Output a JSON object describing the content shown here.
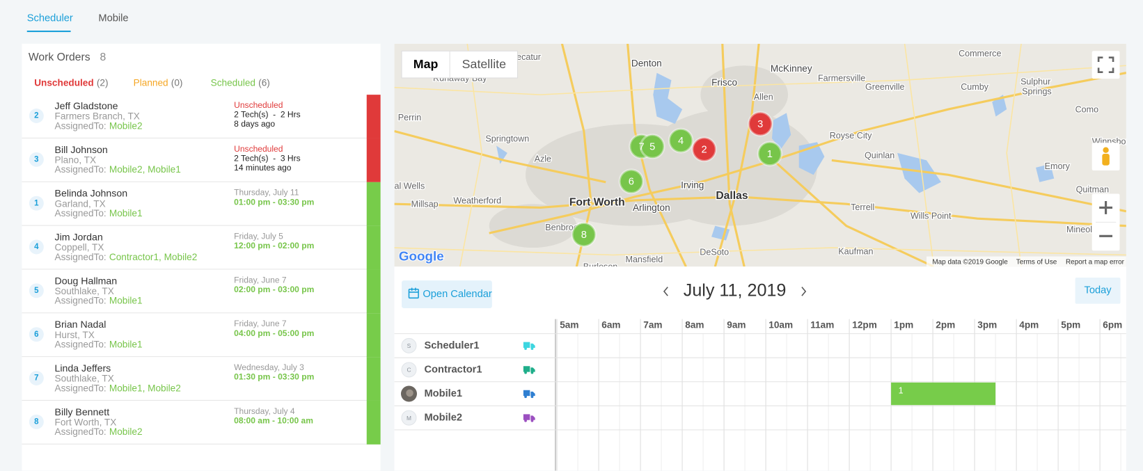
{
  "tabs": {
    "items": [
      "Scheduler",
      "Mobile"
    ]
  },
  "work_orders": {
    "title": "Work Orders",
    "count": 8,
    "filters": [
      {
        "label": "Unscheduled",
        "count": "(2)",
        "color": "#e03a3a"
      },
      {
        "label": "Planned",
        "count": "(0)",
        "color": "#f5a623"
      },
      {
        "label": "Scheduled",
        "count": "(6)",
        "color": "#77c54a"
      }
    ],
    "assigned_label": "AssignedTo:",
    "rows": [
      {
        "id": 2,
        "name": "Jeff Gladstone",
        "location": "Farmers Branch, TX",
        "assigned": "Mobile2",
        "scheduled": false,
        "lines": [
          "Unscheduled",
          "2 Tech(s)  -  2 Hrs",
          "8 days ago"
        ],
        "status_color": "#e03a3a"
      },
      {
        "id": 3,
        "name": "Bill Johnson",
        "location": "Plano, TX",
        "assigned": "Mobile2, Mobile1",
        "scheduled": false,
        "lines": [
          "Unscheduled",
          "2 Tech(s)  -  3 Hrs",
          "14 minutes ago"
        ],
        "status_color": "#e03a3a"
      },
      {
        "id": 1,
        "name": "Belinda Johnson",
        "location": "Garland, TX",
        "assigned": "Mobile1",
        "scheduled": true,
        "lines": [
          "Thursday, July 11",
          "01:00 pm - 03:30 pm"
        ],
        "status_color": "#77cc4a"
      },
      {
        "id": 4,
        "name": "Jim Jordan",
        "location": "Coppell, TX",
        "assigned": "Contractor1, Mobile2",
        "scheduled": true,
        "lines": [
          "Friday, July 5",
          "12:00 pm - 02:00 pm"
        ],
        "status_color": "#77cc4a"
      },
      {
        "id": 5,
        "name": "Doug Hallman",
        "location": "Southlake, TX",
        "assigned": "Mobile1",
        "scheduled": true,
        "lines": [
          "Friday, June 7",
          "02:00 pm - 03:00 pm"
        ],
        "status_color": "#77cc4a"
      },
      {
        "id": 6,
        "name": "Brian Nadal",
        "location": "Hurst, TX",
        "assigned": "Mobile1",
        "scheduled": true,
        "lines": [
          "Friday, June 7",
          "04:00 pm - 05:00 pm"
        ],
        "status_color": "#77cc4a"
      },
      {
        "id": 7,
        "name": "Linda Jeffers",
        "location": "Southlake, TX",
        "assigned": "Mobile1, Mobile2",
        "scheduled": true,
        "lines": [
          "Wednesday, July 3",
          "01:30 pm - 03:30 pm"
        ],
        "status_color": "#77cc4a"
      },
      {
        "id": 8,
        "name": "Billy Bennett",
        "location": "Fort Worth, TX",
        "assigned": "Mobile2",
        "scheduled": true,
        "lines": [
          "Thursday, July 4",
          "08:00 am - 10:00 am"
        ],
        "status_color": "#77cc4a"
      }
    ]
  },
  "map": {
    "buttons": [
      "Map",
      "Satellite"
    ],
    "labels": [
      "Decatur",
      "Denton",
      "Frisco",
      "McKinney",
      "Commerce",
      "Farmersville",
      "Greenville",
      "Cumby",
      "Sulphur",
      "Springs",
      "Runaway Bay",
      "Allen",
      "Perrin",
      "Como",
      "Springtown",
      "Royse City",
      "Quinlan",
      "Emory",
      "Winnsboro",
      "Azle",
      "Irving",
      "Dallas",
      "Fort Worth",
      "Arlington",
      "Weatherford",
      "Millsap",
      "al Wells",
      "Terrell",
      "Wills Point",
      "Quitman",
      "Mineola",
      "Benbrook",
      "Mansfield",
      "DeSoto",
      "Kaufman",
      "Burleson"
    ],
    "markers": [
      {
        "label": "7",
        "color": "#77c54a"
      },
      {
        "label": "5",
        "color": "#77c54a"
      },
      {
        "label": "4",
        "color": "#77c54a"
      },
      {
        "label": "2",
        "color": "#e03a3a"
      },
      {
        "label": "3",
        "color": "#e03a3a"
      },
      {
        "label": "1",
        "color": "#77c54a"
      },
      {
        "label": "6",
        "color": "#77c54a"
      },
      {
        "label": "8",
        "color": "#77c54a"
      }
    ],
    "logo": "Google",
    "footer": [
      "Map data ©2019 Google",
      "Terms of Use",
      "Report a map error"
    ]
  },
  "calendar": {
    "open_button": "Open Calendar",
    "date": "July 11, 2019",
    "today": "Today",
    "hours": [
      {
        "value": 5,
        "label": "5am"
      },
      {
        "value": 6,
        "label": "6am"
      },
      {
        "value": 7,
        "label": "7am"
      },
      {
        "value": 8,
        "label": "8am"
      },
      {
        "value": 9,
        "label": "9am"
      },
      {
        "value": 10,
        "label": "10am"
      },
      {
        "value": 11,
        "label": "11am"
      },
      {
        "value": 12,
        "label": "12pm"
      },
      {
        "value": 13,
        "label": "1pm"
      },
      {
        "value": 14,
        "label": "2pm"
      },
      {
        "value": 15,
        "label": "3pm"
      },
      {
        "value": 16,
        "label": "4pm"
      },
      {
        "value": 17,
        "label": "5pm"
      },
      {
        "value": 18,
        "label": "6pm"
      }
    ],
    "resources": [
      {
        "initial": "S",
        "name": "Scheduler1",
        "color": "#3dd6e0"
      },
      {
        "initial": "C",
        "name": "Contractor1",
        "color": "#1fae8a"
      },
      {
        "name": "Mobile1",
        "color": "#2f7fd1"
      },
      {
        "initial": "M",
        "name": "Mobile2",
        "color": "#9b4fc0"
      }
    ],
    "events": [
      {
        "resource": "Mobile1",
        "label": "1",
        "start": 13,
        "end": 15.5,
        "color": "#77cc4a"
      }
    ]
  }
}
